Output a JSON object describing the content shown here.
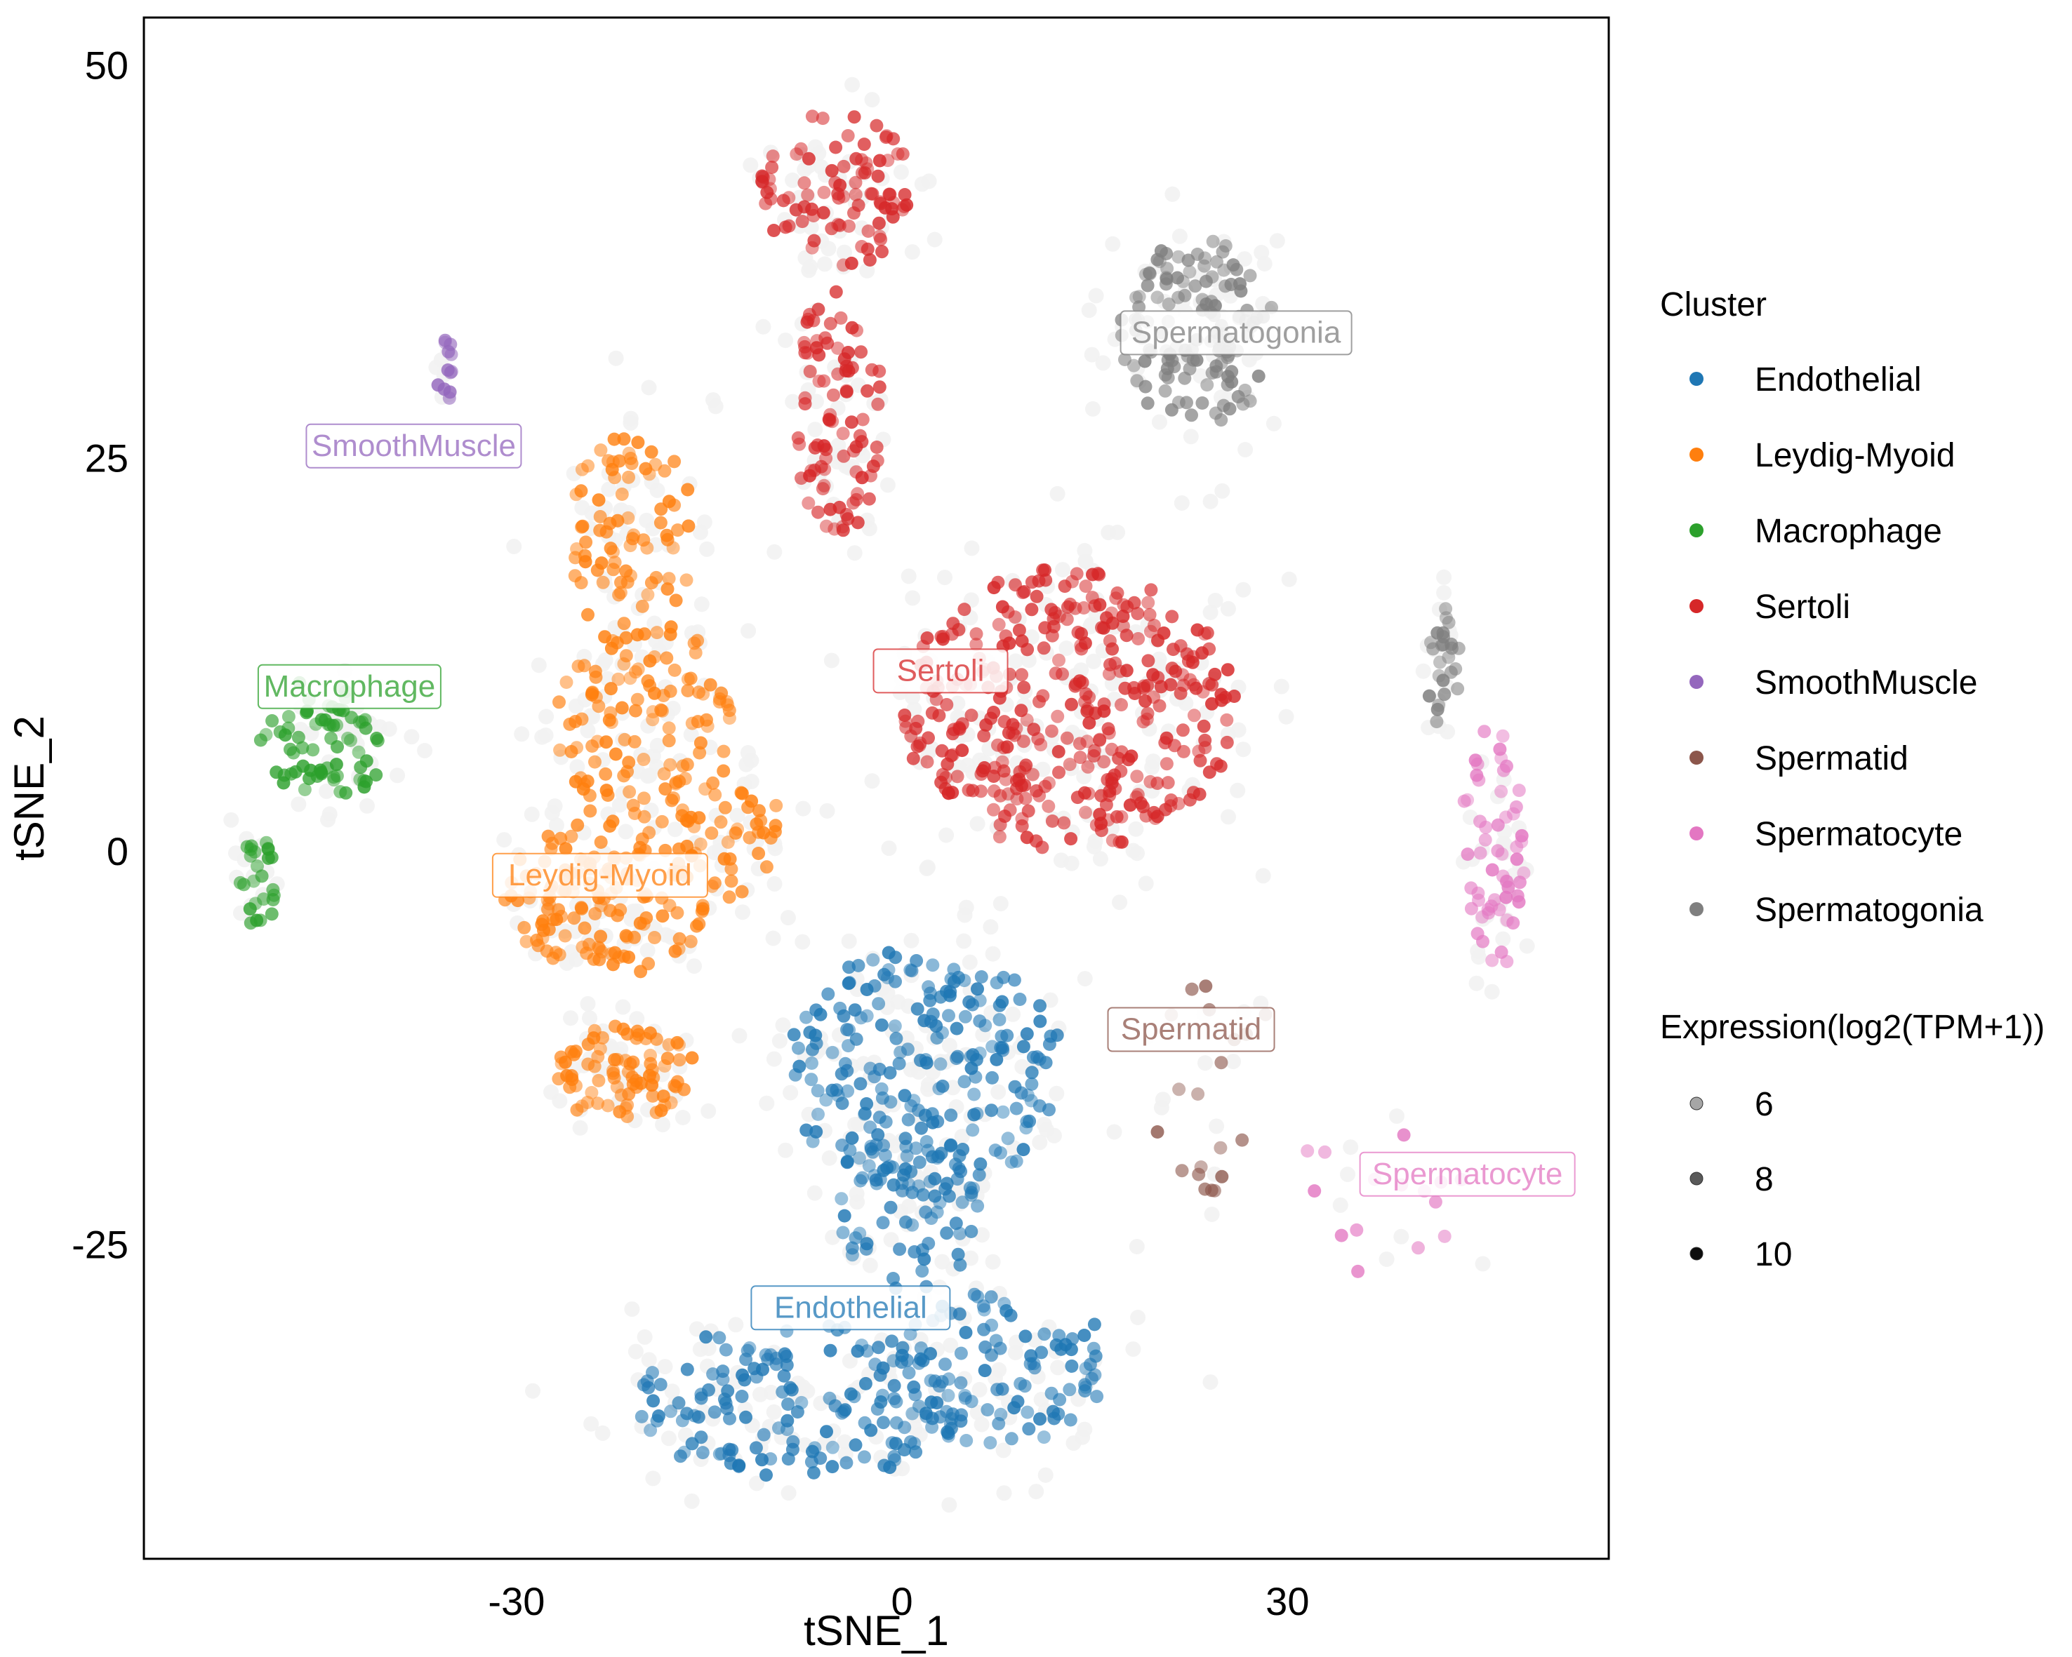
{
  "chart_data": {
    "type": "scatter",
    "xlabel": "tSNE_1",
    "ylabel": "tSNE_2",
    "xlim": [
      -59,
      55
    ],
    "ylim": [
      -45,
      53
    ],
    "xticks": [
      -30,
      0,
      30
    ],
    "yticks": [
      50,
      25,
      0,
      -25
    ],
    "xtick_labels": [
      "-30",
      "0",
      "30"
    ],
    "ytick_labels": [
      "50",
      "25",
      "0",
      "-25"
    ],
    "grid": false,
    "legend_position": "right",
    "background_color": "#f2f2f2",
    "legend": {
      "cluster_title": "Cluster",
      "expression_title": "Expression(log2(TPM+1))",
      "expression_levels": [
        6,
        8,
        10
      ],
      "expression_labels": [
        "6",
        "8",
        "10"
      ]
    },
    "clusters": [
      {
        "name": "Endothelial",
        "color": "#1f77b4",
        "label": {
          "text": "Endothelial",
          "x": -4,
          "y": -29
        },
        "regions": [
          {
            "cx": 2,
            "cy": -14,
            "rx": 11,
            "ry": 8,
            "n": 220
          },
          {
            "cx": -8,
            "cy": -35,
            "rx": 13,
            "ry": 5,
            "n": 160
          },
          {
            "cx": 8,
            "cy": -33,
            "rx": 9,
            "ry": 5,
            "n": 90
          },
          {
            "cx": 1,
            "cy": -23,
            "rx": 6,
            "ry": 5,
            "n": 60
          }
        ]
      },
      {
        "name": "Leydig-Myoid",
        "color": "#ff7f0e",
        "label": {
          "text": "Leydig-Myoid",
          "x": -23.5,
          "y": -1.5
        },
        "regions": [
          {
            "cx": -21,
            "cy": 20,
            "rx": 5,
            "ry": 7,
            "n": 80
          },
          {
            "cx": -20,
            "cy": 8,
            "rx": 7,
            "ry": 7,
            "n": 120
          },
          {
            "cx": -23,
            "cy": -3,
            "rx": 8,
            "ry": 5,
            "n": 140
          },
          {
            "cx": -13,
            "cy": 1,
            "rx": 4,
            "ry": 4,
            "n": 40
          },
          {
            "cx": -22,
            "cy": -14,
            "rx": 6,
            "ry": 3,
            "n": 80
          }
        ]
      },
      {
        "name": "Macrophage",
        "color": "#2ca02c",
        "label": {
          "text": "Macrophage",
          "x": -43,
          "y": 10.5
        },
        "regions": [
          {
            "cx": -45,
            "cy": 7,
            "rx": 5,
            "ry": 4,
            "n": 70
          },
          {
            "cx": -50,
            "cy": -2,
            "rx": 1.5,
            "ry": 3,
            "n": 25
          }
        ]
      },
      {
        "name": "Sertoli",
        "color": "#d62728",
        "label": {
          "text": "Sertoli",
          "x": 3,
          "y": 11.5
        },
        "regions": [
          {
            "cx": 13,
            "cy": 9,
            "rx": 13,
            "ry": 9,
            "n": 360
          },
          {
            "cx": -5,
            "cy": 42,
            "rx": 6,
            "ry": 5,
            "n": 90
          },
          {
            "cx": -5,
            "cy": 28,
            "rx": 3.5,
            "ry": 8,
            "n": 90
          }
        ]
      },
      {
        "name": "SmoothMuscle",
        "color": "#9467bd",
        "label": {
          "text": "SmoothMuscle",
          "x": -38,
          "y": 25.8
        },
        "regions": [
          {
            "cx": -35.5,
            "cy": 30.5,
            "rx": 0.8,
            "ry": 2,
            "n": 12
          }
        ]
      },
      {
        "name": "Spermatid",
        "color": "#8c564b",
        "label": {
          "text": "Spermatid",
          "x": 22.5,
          "y": -11.3
        },
        "regions": [
          {
            "cx": 24,
            "cy": -14,
            "rx": 5,
            "ry": 9,
            "n": 20
          }
        ]
      },
      {
        "name": "Spermatocyte",
        "color": "#e377c2",
        "label": {
          "text": "Spermatocyte",
          "x": 44,
          "y": -20.5
        },
        "regions": [
          {
            "cx": 46,
            "cy": 0,
            "rx": 2.5,
            "ry": 8,
            "n": 55
          },
          {
            "cx": 37,
            "cy": -22,
            "rx": 7,
            "ry": 5,
            "n": 15
          }
        ]
      },
      {
        "name": "Spermatogonia",
        "color": "#7f7f7f",
        "label": {
          "text": "Spermatogonia",
          "x": 26,
          "y": 33
        },
        "regions": [
          {
            "cx": 23,
            "cy": 33,
            "rx": 6,
            "ry": 6,
            "n": 130
          },
          {
            "cx": 42,
            "cy": 12,
            "rx": 1.5,
            "ry": 4,
            "n": 25
          }
        ]
      }
    ]
  }
}
